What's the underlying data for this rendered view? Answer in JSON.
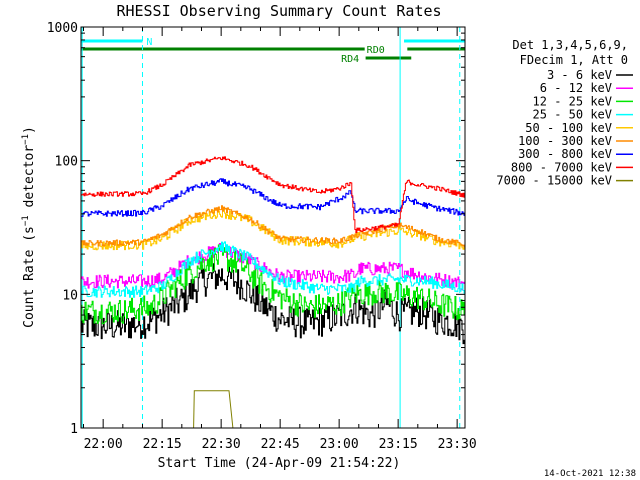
{
  "chart_data": {
    "type": "line",
    "title": "RHESSI Observing Summary Count Rates",
    "xlabel": "Start Time (24-Apr-09 21:54:22)",
    "ylabel": "Count Rate (s⁻¹ detector⁻¹)",
    "timestamp": "14-Oct-2021 12:38",
    "x_axis": {
      "unit": "time-of-day",
      "range": [
        "21:54:22",
        "23:32:00"
      ],
      "ticks": [
        "22:00",
        "22:15",
        "22:30",
        "22:45",
        "23:00",
        "23:15",
        "23:30"
      ]
    },
    "y_axis": {
      "scale": "log",
      "range": [
        1,
        1000
      ],
      "ticks": [
        {
          "label": "1",
          "value": 1
        },
        {
          "label": "10",
          "value": 10
        },
        {
          "label": "100",
          "value": 100
        },
        {
          "label": "1000",
          "value": 1000
        }
      ]
    },
    "legend": {
      "placement": "right",
      "header": [
        "Det 1,3,4,5,6,9,",
        "FDecim 1, Att 0"
      ]
    },
    "flags": [
      {
        "label": "N",
        "color": "#00ffff",
        "segments": [
          [
            "21:54:22",
            "22:10:00"
          ],
          [
            "23:16:30",
            "23:32:00"
          ]
        ],
        "label_at": "22:11:00",
        "level": 3
      },
      {
        "label": "RD0",
        "color": "#008000",
        "segments": [
          [
            "21:54:22",
            "23:09:00"
          ],
          [
            "23:17:20",
            "23:32:00"
          ]
        ],
        "label_at": "23:07:00",
        "level": 2
      },
      {
        "label": "RD4",
        "color": "#008000",
        "segments": [
          [
            "23:04:30",
            "23:18:20"
          ]
        ],
        "label_at": "23:00:30",
        "level": 1
      }
    ],
    "vertical_lines": [
      {
        "time": "21:54:40",
        "style": "solid",
        "color": "#00ffff"
      },
      {
        "time": "22:10:00",
        "style": "dashed",
        "color": "#00ffff"
      },
      {
        "time": "23:15:30",
        "style": "solid",
        "color": "#00ffff"
      },
      {
        "time": "23:30:40",
        "style": "dashed",
        "color": "#00ffff"
      }
    ],
    "series": [
      {
        "name": "3 - 6 keV",
        "color": "#000000",
        "noise": 0.28,
        "points": [
          [
            "21:54:22",
            5.8
          ],
          [
            "22:05:00",
            5.8
          ],
          [
            "22:12:00",
            6.3
          ],
          [
            "22:20:00",
            9
          ],
          [
            "22:25:00",
            12.5
          ],
          [
            "22:30:00",
            14
          ],
          [
            "22:35:00",
            12
          ],
          [
            "22:40:00",
            8.5
          ],
          [
            "22:45:00",
            6.5
          ],
          [
            "22:52:00",
            6
          ],
          [
            "23:00:00",
            6.8
          ],
          [
            "23:04:00",
            8
          ],
          [
            "23:08:00",
            7
          ],
          [
            "23:12:00",
            8.5
          ],
          [
            "23:15:00",
            7
          ],
          [
            "23:20:00",
            7.5
          ],
          [
            "23:25:00",
            6.5
          ],
          [
            "23:30:00",
            6
          ],
          [
            "23:32:00",
            5.5
          ]
        ]
      },
      {
        "name": "6 - 12 keV",
        "color": "#ff00ff",
        "noise": 0.12,
        "points": [
          [
            "21:54:22",
            12.5
          ],
          [
            "22:10:00",
            12.5
          ],
          [
            "22:15:00",
            13
          ],
          [
            "22:22:00",
            18
          ],
          [
            "22:30:00",
            22
          ],
          [
            "22:37:00",
            18
          ],
          [
            "22:45:00",
            13.5
          ],
          [
            "23:00:00",
            13.5
          ],
          [
            "23:04:00",
            14
          ],
          [
            "23:05:00",
            15.5
          ],
          [
            "23:15:00",
            15.5
          ],
          [
            "23:20:00",
            14
          ],
          [
            "23:25:00",
            13
          ],
          [
            "23:32:00",
            12
          ]
        ]
      },
      {
        "name": "12 - 25 keV",
        "color": "#00e600",
        "noise": 0.22,
        "points": [
          [
            "21:54:22",
            7.5
          ],
          [
            "22:05:00",
            7.5
          ],
          [
            "22:12:00",
            8
          ],
          [
            "22:20:00",
            13
          ],
          [
            "22:26:00",
            18
          ],
          [
            "22:30:00",
            19
          ],
          [
            "22:35:00",
            16.5
          ],
          [
            "22:40:00",
            12
          ],
          [
            "22:45:00",
            9.5
          ],
          [
            "22:52:00",
            8
          ],
          [
            "23:00:00",
            8.5
          ],
          [
            "23:04:00",
            10
          ],
          [
            "23:10:00",
            10.5
          ],
          [
            "23:15:00",
            10
          ],
          [
            "23:20:00",
            9.5
          ],
          [
            "23:25:00",
            8.5
          ],
          [
            "23:32:00",
            7.5
          ]
        ]
      },
      {
        "name": "25 - 50 keV",
        "color": "#00ffff",
        "noise": 0.1,
        "points": [
          [
            "21:54:22",
            10.5
          ],
          [
            "22:10:00",
            10.5
          ],
          [
            "22:15:00",
            11.5
          ],
          [
            "22:22:00",
            18
          ],
          [
            "22:30:00",
            23
          ],
          [
            "22:37:00",
            18.5
          ],
          [
            "22:45:00",
            12.5
          ],
          [
            "22:55:00",
            11
          ],
          [
            "23:03:00",
            11
          ],
          [
            "23:05:00",
            12.5
          ],
          [
            "23:15:00",
            13
          ],
          [
            "23:22:00",
            12.5
          ],
          [
            "23:32:00",
            11
          ]
        ]
      },
      {
        "name": "50 - 100 keV",
        "color": "#ffc800",
        "noise": 0.08,
        "points": [
          [
            "21:54:22",
            23
          ],
          [
            "22:10:00",
            23.5
          ],
          [
            "22:15:00",
            26
          ],
          [
            "22:22:00",
            36
          ],
          [
            "22:30:00",
            41
          ],
          [
            "22:37:00",
            36
          ],
          [
            "22:45:00",
            25.5
          ],
          [
            "23:00:00",
            24
          ],
          [
            "23:05:00",
            27
          ],
          [
            "23:15:00",
            30
          ],
          [
            "23:20:00",
            28
          ],
          [
            "23:25:00",
            25
          ],
          [
            "23:32:00",
            23
          ]
        ]
      },
      {
        "name": "100 - 300 keV",
        "color": "#ff8c00",
        "noise": 0.05,
        "points": [
          [
            "21:54:22",
            24
          ],
          [
            "22:10:00",
            24.5
          ],
          [
            "22:15:00",
            28
          ],
          [
            "22:22:00",
            38
          ],
          [
            "22:30:00",
            44
          ],
          [
            "22:37:00",
            37
          ],
          [
            "22:45:00",
            26
          ],
          [
            "23:00:00",
            25
          ],
          [
            "23:05:00",
            28
          ],
          [
            "23:15:00",
            33
          ],
          [
            "23:20:00",
            30
          ],
          [
            "23:25:00",
            26
          ],
          [
            "23:32:00",
            23.5
          ]
        ]
      },
      {
        "name": "300 - 800 keV",
        "color": "#0000ff",
        "noise": 0.05,
        "points": [
          [
            "21:54:22",
            40
          ],
          [
            "22:10:00",
            40.5
          ],
          [
            "22:15:00",
            46
          ],
          [
            "22:22:00",
            62
          ],
          [
            "22:30:00",
            70
          ],
          [
            "22:37:00",
            62
          ],
          [
            "22:45:00",
            46
          ],
          [
            "22:55:00",
            45
          ],
          [
            "23:00:00",
            52
          ],
          [
            "23:03:00",
            58
          ],
          [
            "23:04:00",
            42
          ],
          [
            "23:15:00",
            42
          ],
          [
            "23:17:00",
            52
          ],
          [
            "23:20:00",
            48
          ],
          [
            "23:25:00",
            44
          ],
          [
            "23:32:00",
            40
          ]
        ]
      },
      {
        "name": "800 - 7000 keV",
        "color": "#ff0000",
        "noise": 0.04,
        "points": [
          [
            "21:54:22",
            56
          ],
          [
            "22:10:00",
            56.5
          ],
          [
            "22:15:00",
            66
          ],
          [
            "22:22:00",
            93
          ],
          [
            "22:30:00",
            105
          ],
          [
            "22:37:00",
            92
          ],
          [
            "22:45:00",
            66
          ],
          [
            "22:55:00",
            58
          ],
          [
            "23:00:00",
            62
          ],
          [
            "23:03:00",
            68
          ],
          [
            "23:04:00",
            30
          ],
          [
            "23:15:00",
            33
          ],
          [
            "23:17:00",
            70
          ],
          [
            "23:20:00",
            66
          ],
          [
            "23:25:00",
            62
          ],
          [
            "23:32:00",
            55
          ]
        ]
      },
      {
        "name": "7000 - 15000 keV",
        "color": "#808000",
        "noise": 0,
        "points": [
          [
            "21:54:22",
            1
          ],
          [
            "22:23:00",
            1
          ],
          [
            "22:23:10",
            1.9
          ],
          [
            "22:29:00",
            1.9
          ],
          [
            "22:32:00",
            1.9
          ],
          [
            "22:33:00",
            1
          ],
          [
            "23:32:00",
            1
          ]
        ]
      }
    ]
  }
}
